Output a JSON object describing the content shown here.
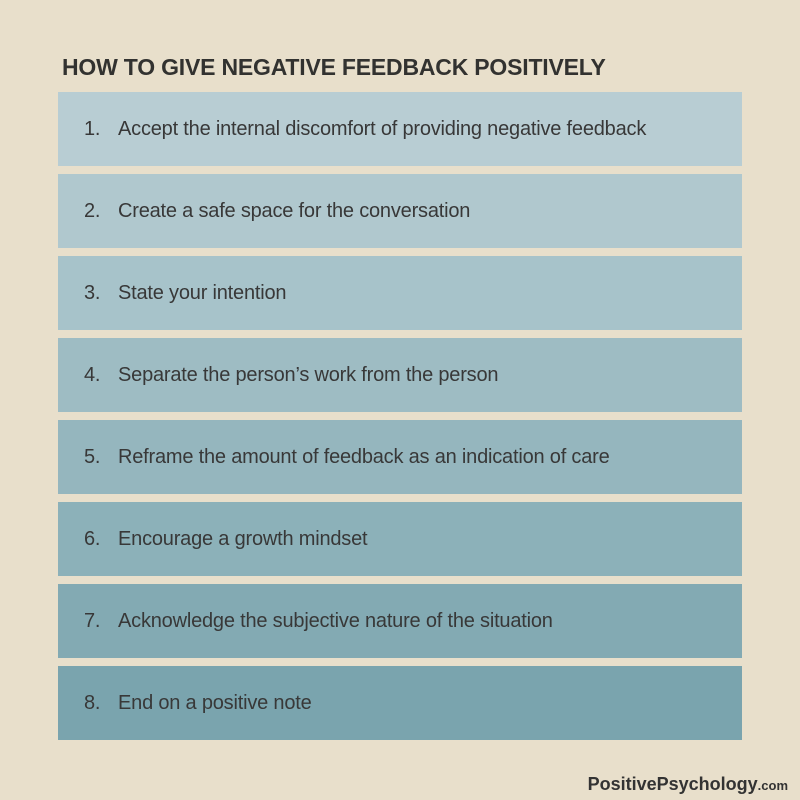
{
  "title": "HOW TO GIVE NEGATIVE FEEDBACK POSITIVELY",
  "steps": [
    {
      "number": "1.",
      "text": "Accept the internal discomfort of providing negative feedback"
    },
    {
      "number": "2.",
      "text": "Create a safe space for the conversation"
    },
    {
      "number": "3.",
      "text": "State your intention"
    },
    {
      "number": "4.",
      "text": "Separate the person’s work from the person"
    },
    {
      "number": "5.",
      "text": "Reframe the amount of feedback as an indication of care"
    },
    {
      "number": "6.",
      "text": "Encourage a growth mindset"
    },
    {
      "number": "7.",
      "text": "Acknowledge the subjective nature of the situation"
    },
    {
      "number": "8.",
      "text": "End on a positive note"
    }
  ],
  "footer": {
    "brand": "PositivePsychology",
    "tld": ".com"
  },
  "colors": {
    "background": "#e8dfcb",
    "title_text": "#323230",
    "step_text": "#383838",
    "footer_text": "#333333",
    "bar_colors": [
      "#b8cdd3",
      "#b0c8ce",
      "#a7c3ca",
      "#9ebcc3",
      "#95b6be",
      "#8cb1b9",
      "#83aab3",
      "#7aa4ae"
    ]
  }
}
